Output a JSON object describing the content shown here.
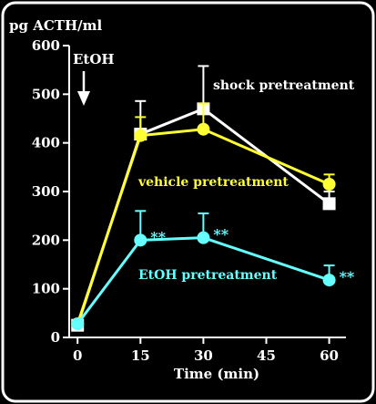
{
  "chart_data": {
    "type": "line",
    "ylabel": "pg ACTH/ml",
    "xlabel": "Time (min)",
    "x": [
      0,
      15,
      30,
      60
    ],
    "xticks": [
      "0",
      "15",
      "30",
      "45",
      "60"
    ],
    "xtick_values": [
      0,
      15,
      30,
      45,
      60
    ],
    "yticks": [
      "0",
      "100",
      "200",
      "300",
      "400",
      "500",
      "600"
    ],
    "ylim": [
      0,
      600
    ],
    "xlim": [
      -2,
      64
    ],
    "annotation": "EtOH",
    "significance_mark": "**",
    "series": [
      {
        "name": "shock pretreatment",
        "color": "#ffffff",
        "marker": "square",
        "values": [
          25,
          418,
          470,
          275
        ],
        "errors": [
          0,
          68,
          88,
          25
        ]
      },
      {
        "name": "vehicle pretreatment",
        "color": "#ffff33",
        "marker": "circle",
        "values": [
          28,
          415,
          428,
          315
        ],
        "errors": [
          0,
          38,
          53,
          20
        ]
      },
      {
        "name": "EtOH pretreatment",
        "color": "#66ffff",
        "marker": "circle",
        "values": [
          28,
          200,
          205,
          118
        ],
        "errors": [
          0,
          60,
          50,
          30
        ]
      }
    ]
  }
}
